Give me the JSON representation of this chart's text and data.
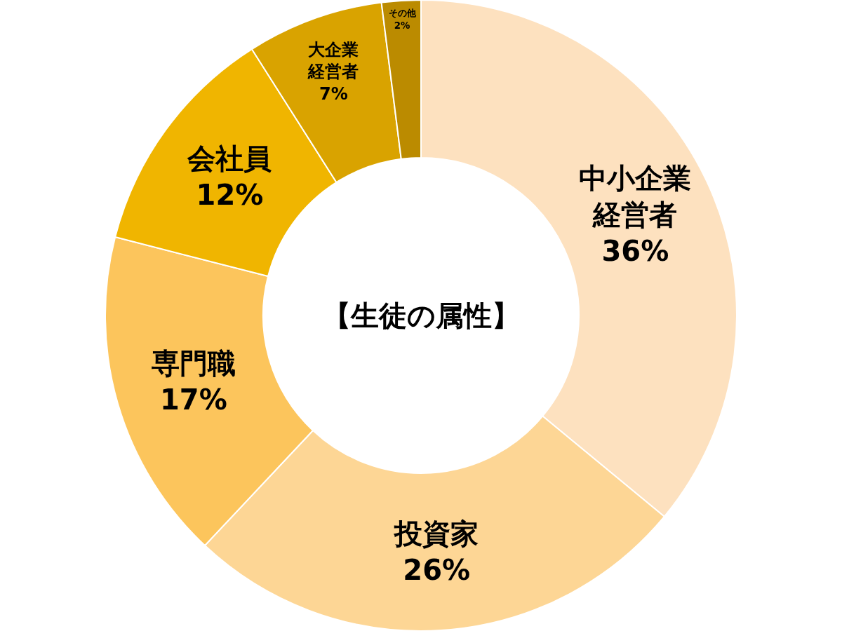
{
  "chart_data": {
    "type": "donut",
    "title": "【生徒の属性】",
    "categories": [
      "中小企業経営者",
      "投資家",
      "専門職",
      "会社員",
      "大企業経営者",
      "その他"
    ],
    "values": [
      36,
      26,
      17,
      12,
      7,
      2
    ],
    "value_labels": [
      "36%",
      "26%",
      "17%",
      "12%",
      "7%",
      "2%"
    ],
    "colors": [
      "#fde1bf",
      "#fdd695",
      "#fcc55c",
      "#f0b500",
      "#d9a300",
      "#bb8b00"
    ],
    "legend": false
  }
}
